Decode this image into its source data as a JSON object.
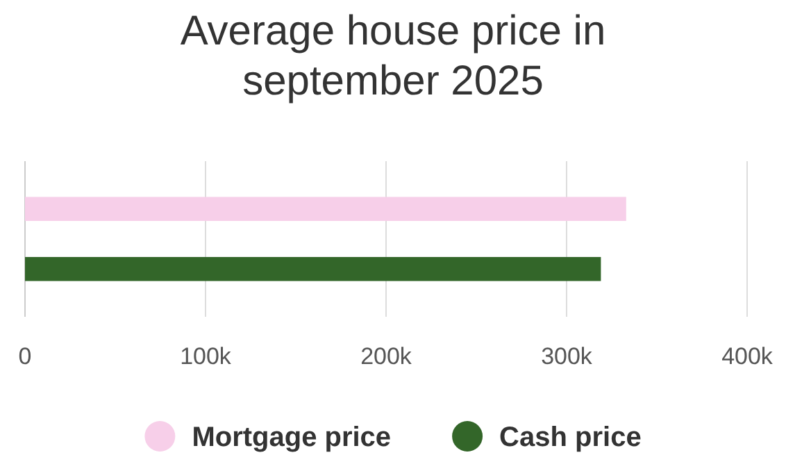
{
  "chart_data": {
    "type": "bar",
    "orientation": "horizontal",
    "title": "Average house price in september 2025",
    "categories": [
      null
    ],
    "series": [
      {
        "name": "Mortgage price",
        "color": "#f7cfe9",
        "values": [
          333000
        ]
      },
      {
        "name": "Cash price",
        "color": "#336629",
        "values": [
          319000
        ]
      }
    ],
    "xlim": [
      0,
      400000
    ],
    "xticks": [
      {
        "value": 0,
        "label": "0"
      },
      {
        "value": 100000,
        "label": "100k"
      },
      {
        "value": 200000,
        "label": "200k"
      },
      {
        "value": 300000,
        "label": "300k"
      },
      {
        "value": 400000,
        "label": "400k"
      }
    ],
    "grid": "x",
    "legend": "bottom"
  }
}
